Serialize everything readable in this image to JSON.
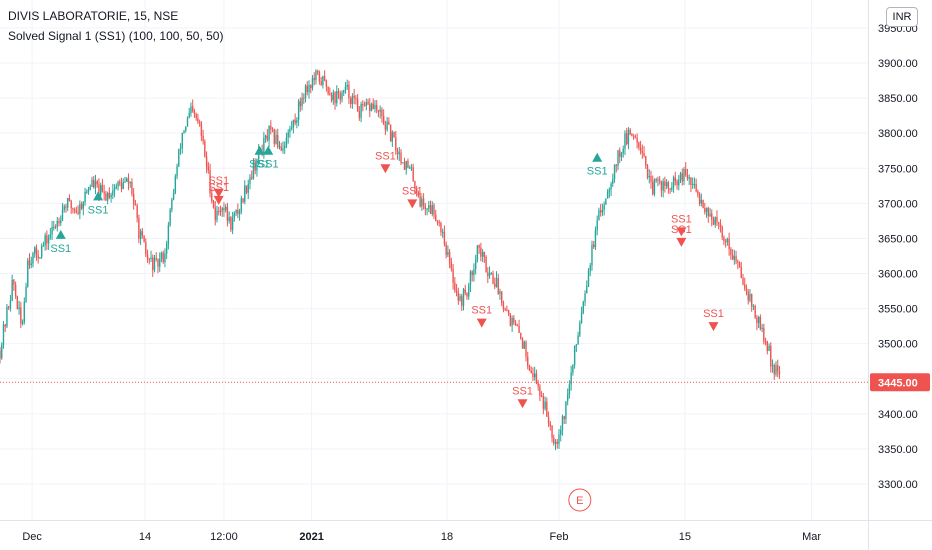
{
  "header": {
    "symbol_line": "DIVIS LABORATORIE, 15, NSE",
    "indicator_line": "Solved Signal 1 (SS1) (100, 100, 50, 50)",
    "currency": "INR"
  },
  "colors": {
    "up": "#26a69a",
    "down": "#ef5350",
    "grid": "#f0f3fa",
    "axis_text": "#131722",
    "last_price_bg": "#ef5350"
  },
  "last_price_label": "3445.00",
  "event_marker": "E",
  "chart_data": {
    "type": "candlestick",
    "y_axis": {
      "range": [
        3260,
        3960
      ],
      "ticks": [
        3300,
        3350,
        3400,
        3450,
        3500,
        3550,
        3600,
        3650,
        3700,
        3750,
        3800,
        3850,
        3900,
        3950
      ],
      "tick_labels": [
        "3300.00",
        "3350.00",
        "3400.00",
        "3450.00",
        "3500.00",
        "3550.00",
        "3600.00",
        "3650.00",
        "3700.00",
        "3750.00",
        "3800.00",
        "3850.00",
        "3900.00",
        "3950.00"
      ]
    },
    "x_axis": {
      "range": [
        0,
        100
      ],
      "ticks": [
        {
          "pos": 3.7,
          "label": "Dec"
        },
        {
          "pos": 16.7,
          "label": "14"
        },
        {
          "pos": 25.8,
          "label": "12:00"
        },
        {
          "pos": 35.9,
          "label": "2021"
        },
        {
          "pos": 51.5,
          "label": "18"
        },
        {
          "pos": 64.4,
          "label": "Feb"
        },
        {
          "pos": 78.9,
          "label": "15"
        },
        {
          "pos": 93.5,
          "label": "Mar"
        }
      ]
    },
    "price_path": [
      {
        "x": 0,
        "y": 3490
      },
      {
        "x": 1.5,
        "y": 3590
      },
      {
        "x": 2.5,
        "y": 3520
      },
      {
        "x": 3.2,
        "y": 3620
      },
      {
        "x": 4.5,
        "y": 3630
      },
      {
        "x": 6,
        "y": 3660
      },
      {
        "x": 7.5,
        "y": 3700
      },
      {
        "x": 9,
        "y": 3690
      },
      {
        "x": 10.5,
        "y": 3730
      },
      {
        "x": 12,
        "y": 3710
      },
      {
        "x": 13.5,
        "y": 3725
      },
      {
        "x": 15,
        "y": 3730
      },
      {
        "x": 16,
        "y": 3660
      },
      {
        "x": 17,
        "y": 3620
      },
      {
        "x": 18,
        "y": 3610
      },
      {
        "x": 19,
        "y": 3630
      },
      {
        "x": 20,
        "y": 3720
      },
      {
        "x": 21,
        "y": 3800
      },
      {
        "x": 22,
        "y": 3830
      },
      {
        "x": 23,
        "y": 3810
      },
      {
        "x": 24,
        "y": 3740
      },
      {
        "x": 24.8,
        "y": 3680
      },
      {
        "x": 25.6,
        "y": 3700
      },
      {
        "x": 26.5,
        "y": 3670
      },
      {
        "x": 27.5,
        "y": 3690
      },
      {
        "x": 28.5,
        "y": 3730
      },
      {
        "x": 29.5,
        "y": 3760
      },
      {
        "x": 31,
        "y": 3800
      },
      {
        "x": 32.5,
        "y": 3780
      },
      {
        "x": 34,
        "y": 3820
      },
      {
        "x": 35,
        "y": 3860
      },
      {
        "x": 36.5,
        "y": 3880
      },
      {
        "x": 37.5,
        "y": 3870
      },
      {
        "x": 38.5,
        "y": 3850
      },
      {
        "x": 40,
        "y": 3860
      },
      {
        "x": 41.5,
        "y": 3830
      },
      {
        "x": 43,
        "y": 3840
      },
      {
        "x": 44.5,
        "y": 3810
      },
      {
        "x": 46,
        "y": 3770
      },
      {
        "x": 47.5,
        "y": 3740
      },
      {
        "x": 48.5,
        "y": 3700
      },
      {
        "x": 50,
        "y": 3690
      },
      {
        "x": 51,
        "y": 3660
      },
      {
        "x": 52,
        "y": 3600
      },
      {
        "x": 53,
        "y": 3560
      },
      {
        "x": 54,
        "y": 3580
      },
      {
        "x": 55,
        "y": 3640
      },
      {
        "x": 56,
        "y": 3610
      },
      {
        "x": 57,
        "y": 3590
      },
      {
        "x": 58,
        "y": 3560
      },
      {
        "x": 59,
        "y": 3530
      },
      {
        "x": 60,
        "y": 3510
      },
      {
        "x": 61,
        "y": 3470
      },
      {
        "x": 62,
        "y": 3440
      },
      {
        "x": 63,
        "y": 3400
      },
      {
        "x": 64,
        "y": 3360
      },
      {
        "x": 65,
        "y": 3400
      },
      {
        "x": 66,
        "y": 3470
      },
      {
        "x": 67,
        "y": 3550
      },
      {
        "x": 68,
        "y": 3620
      },
      {
        "x": 69,
        "y": 3680
      },
      {
        "x": 70,
        "y": 3720
      },
      {
        "x": 71,
        "y": 3760
      },
      {
        "x": 72,
        "y": 3790
      },
      {
        "x": 73,
        "y": 3800
      },
      {
        "x": 74,
        "y": 3780
      },
      {
        "x": 75,
        "y": 3720
      },
      {
        "x": 76,
        "y": 3730
      },
      {
        "x": 77,
        "y": 3720
      },
      {
        "x": 78,
        "y": 3730
      },
      {
        "x": 79,
        "y": 3740
      },
      {
        "x": 80,
        "y": 3720
      },
      {
        "x": 81,
        "y": 3700
      },
      {
        "x": 82,
        "y": 3680
      },
      {
        "x": 83,
        "y": 3660
      },
      {
        "x": 84,
        "y": 3640
      },
      {
        "x": 85,
        "y": 3610
      },
      {
        "x": 86,
        "y": 3580
      },
      {
        "x": 87,
        "y": 3540
      },
      {
        "x": 88,
        "y": 3510
      },
      {
        "x": 89,
        "y": 3470
      },
      {
        "x": 90,
        "y": 3445
      }
    ],
    "signals": [
      {
        "x": 7.0,
        "y": 3655,
        "dir": "up",
        "label": "SS1"
      },
      {
        "x": 11.3,
        "y": 3710,
        "dir": "up",
        "label": "SS1"
      },
      {
        "x": 25.2,
        "y": 3715,
        "dir": "down",
        "label": "SS1"
      },
      {
        "x": 25.2,
        "y": 3705,
        "dir": "down",
        "label": "SS1"
      },
      {
        "x": 29.9,
        "y": 3775,
        "dir": "up",
        "label": "SS1"
      },
      {
        "x": 30.9,
        "y": 3775,
        "dir": "up",
        "label": "SS1"
      },
      {
        "x": 44.4,
        "y": 3750,
        "dir": "down",
        "label": "SS1"
      },
      {
        "x": 47.5,
        "y": 3700,
        "dir": "down",
        "label": "SS1"
      },
      {
        "x": 55.5,
        "y": 3530,
        "dir": "down",
        "label": "SS1"
      },
      {
        "x": 60.2,
        "y": 3415,
        "dir": "down",
        "label": "SS1"
      },
      {
        "x": 68.8,
        "y": 3765,
        "dir": "up",
        "label": "SS1"
      },
      {
        "x": 78.5,
        "y": 3660,
        "dir": "down",
        "label": "SS1"
      },
      {
        "x": 78.5,
        "y": 3645,
        "dir": "down",
        "label": "SS1"
      },
      {
        "x": 82.2,
        "y": 3525,
        "dir": "down",
        "label": "SS1"
      }
    ]
  }
}
